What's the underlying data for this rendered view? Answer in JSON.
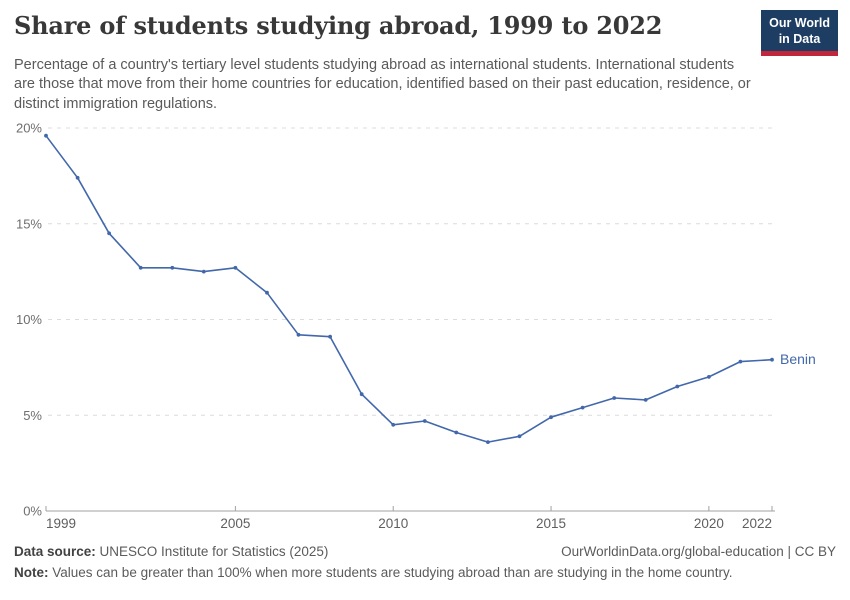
{
  "header": {
    "title": "Share of students studying abroad, 1999 to 2022",
    "subtitle": "Percentage of a country's tertiary level students studying abroad as international students. International students are those that move from their home countries for education, identified based on their past education, residence, or distinct immigration regulations.",
    "logo": {
      "line1": "Our World",
      "line2": "in Data"
    }
  },
  "chart_data": {
    "type": "line",
    "title": "Share of students studying abroad, 1999 to 2022",
    "xlabel": "",
    "ylabel": "",
    "xlim": [
      1999,
      2022
    ],
    "ylim": [
      0,
      20
    ],
    "xticks": [
      1999,
      2005,
      2010,
      2015,
      2020,
      2022
    ],
    "yticks": [
      0,
      5,
      10,
      15,
      20
    ],
    "ytick_suffix": "%",
    "grid": "horizontal-dashed",
    "legend_position": "end-of-line-label",
    "series": [
      {
        "name": "Benin",
        "color": "#4268ab",
        "x": [
          1999,
          2000,
          2001,
          2002,
          2003,
          2004,
          2005,
          2006,
          2007,
          2008,
          2009,
          2010,
          2011,
          2012,
          2013,
          2014,
          2015,
          2016,
          2017,
          2018,
          2019,
          2020,
          2021,
          2022
        ],
        "values": [
          19.6,
          17.4,
          14.5,
          12.7,
          12.7,
          12.5,
          12.7,
          11.4,
          9.2,
          9.1,
          6.1,
          4.5,
          4.7,
          4.1,
          3.6,
          3.9,
          4.9,
          5.4,
          5.9,
          5.8,
          6.5,
          7.0,
          7.8,
          7.9
        ]
      }
    ]
  },
  "footer": {
    "datasource_label": "Data source:",
    "datasource_value": "UNESCO Institute for Statistics (2025)",
    "link": "OurWorldinData.org/global-education | CC BY",
    "note_label": "Note:",
    "note_value": "Values can be greater than 100% when more students are studying abroad than are studying in the home country."
  },
  "colors": {
    "line-blue": "#4268ab",
    "logo-navy": "#1d3d63",
    "logo-red": "#c0273c",
    "gridline": "#dcdcdc",
    "axis": "#a1a1a1",
    "ytick-text": "#6e6e6e",
    "xtick-text": "#5f5f5f"
  }
}
